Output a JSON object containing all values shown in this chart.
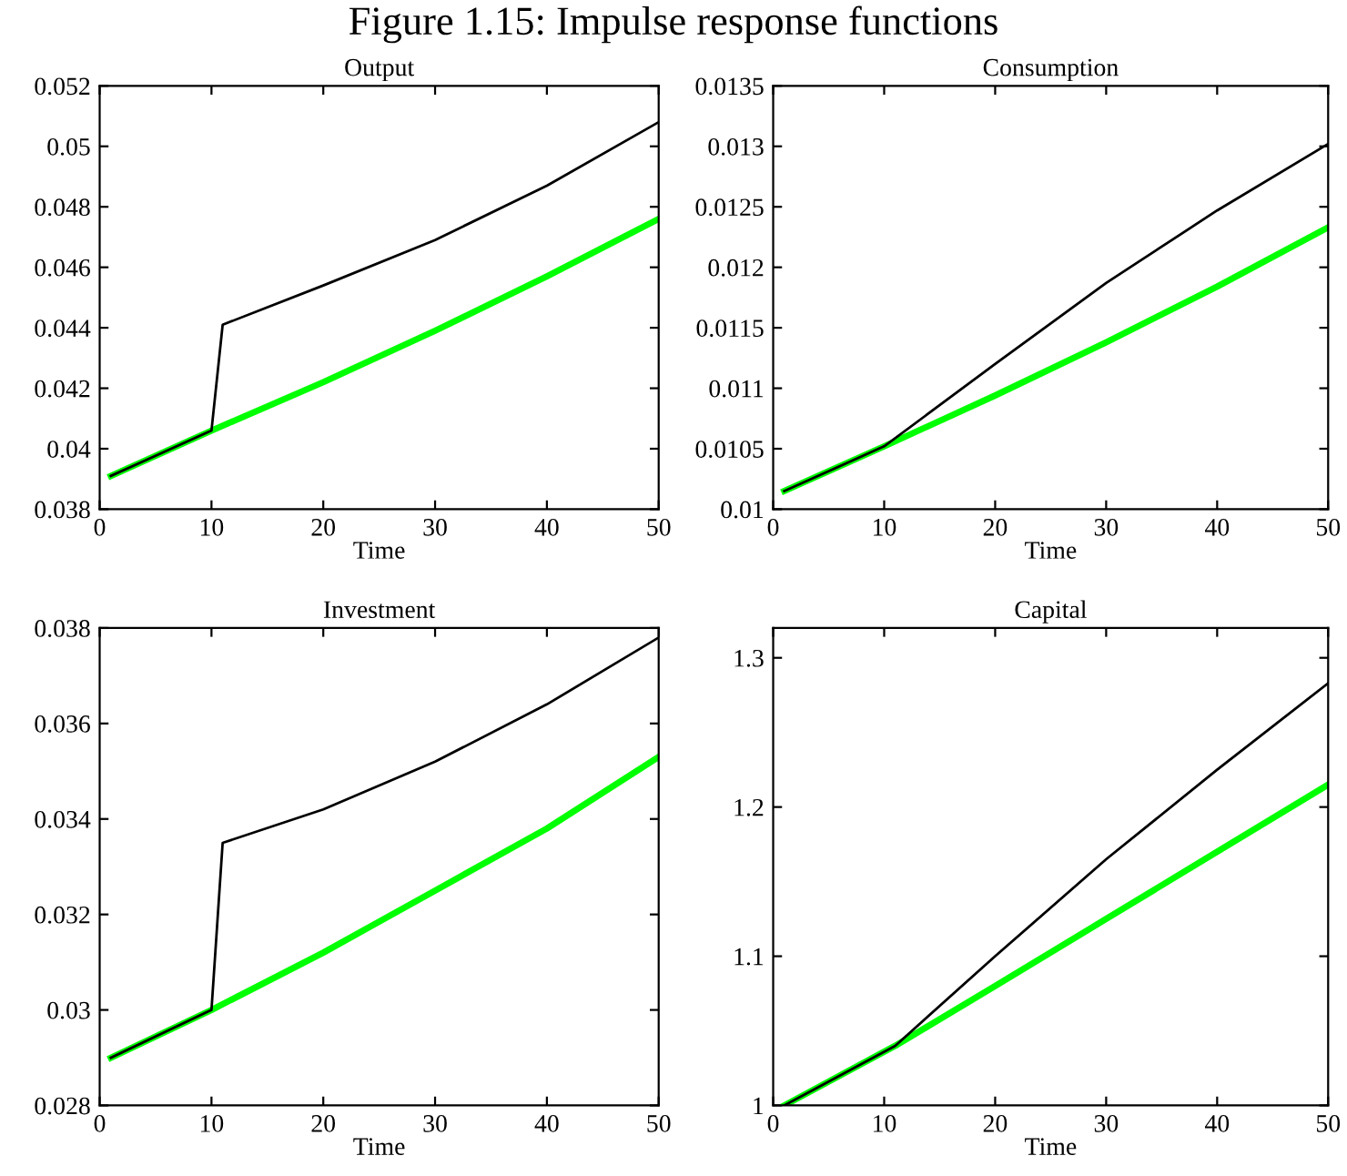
{
  "chart_data": [
    {
      "type": "line",
      "title": "Output",
      "xlabel": "Time",
      "xlim": [
        0,
        50
      ],
      "xticks": [
        0,
        10,
        20,
        30,
        40,
        50
      ],
      "ylim": [
        0.038,
        0.052
      ],
      "yticks": [
        0.038,
        0.04,
        0.042,
        0.044,
        0.046,
        0.048,
        0.05,
        0.052
      ],
      "grid": false,
      "legend": false,
      "annotations": [
        "Figure 1.15: Impulse response functions"
      ],
      "series": [
        {
          "color": "#00ff00",
          "x": [
            1,
            10,
            20,
            30,
            40,
            50
          ],
          "values": [
            0.0391,
            0.0406,
            0.0422,
            0.0439,
            0.0457,
            0.0476
          ]
        },
        {
          "color": "#000000",
          "x": [
            1,
            10,
            11,
            20,
            30,
            40,
            50
          ],
          "values": [
            0.0391,
            0.0406,
            0.0441,
            0.0454,
            0.0469,
            0.0487,
            0.0508
          ]
        }
      ]
    },
    {
      "type": "line",
      "title": "Consumption",
      "xlabel": "Time",
      "xlim": [
        0,
        50
      ],
      "xticks": [
        0,
        10,
        20,
        30,
        40,
        50
      ],
      "ylim": [
        0.01,
        0.0135
      ],
      "yticks": [
        0.01,
        0.0105,
        0.011,
        0.0115,
        0.012,
        0.0125,
        0.013,
        0.0135
      ],
      "grid": false,
      "legend": false,
      "series": [
        {
          "color": "#00ff00",
          "x": [
            1,
            10,
            20,
            30,
            40,
            50
          ],
          "values": [
            0.01015,
            0.01052,
            0.01094,
            0.01138,
            0.01184,
            0.01233
          ]
        },
        {
          "color": "#000000",
          "x": [
            1,
            10,
            20,
            30,
            40,
            50
          ],
          "values": [
            0.01015,
            0.01052,
            0.0112,
            0.01187,
            0.01247,
            0.01302
          ]
        }
      ]
    },
    {
      "type": "line",
      "title": "Investment",
      "xlabel": "Time",
      "xlim": [
        0,
        50
      ],
      "xticks": [
        0,
        10,
        20,
        30,
        40,
        50
      ],
      "ylim": [
        0.028,
        0.038
      ],
      "yticks": [
        0.028,
        0.03,
        0.032,
        0.034,
        0.036,
        0.038
      ],
      "grid": false,
      "legend": false,
      "series": [
        {
          "color": "#00ff00",
          "x": [
            1,
            10,
            20,
            30,
            40,
            50
          ],
          "values": [
            0.029,
            0.03,
            0.0312,
            0.0325,
            0.0338,
            0.0353
          ]
        },
        {
          "color": "#000000",
          "x": [
            1,
            10,
            11,
            20,
            30,
            40,
            50
          ],
          "values": [
            0.029,
            0.03,
            0.0335,
            0.0342,
            0.0352,
            0.0364,
            0.0378
          ]
        }
      ]
    },
    {
      "type": "line",
      "title": "Capital",
      "xlabel": "Time",
      "xlim": [
        0,
        50
      ],
      "xticks": [
        0,
        10,
        20,
        30,
        40,
        50
      ],
      "ylim": [
        1,
        1.32
      ],
      "yticks": [
        1,
        1.1,
        1.2,
        1.3
      ],
      "grid": false,
      "legend": false,
      "series": [
        {
          "color": "#00ff00",
          "x": [
            1,
            11,
            20,
            30,
            40,
            50
          ],
          "values": [
            1.0,
            1.04,
            1.08,
            1.125,
            1.17,
            1.215
          ]
        },
        {
          "color": "#000000",
          "x": [
            1,
            11,
            20,
            30,
            40,
            50
          ],
          "values": [
            1.0,
            1.04,
            1.1,
            1.165,
            1.225,
            1.283
          ]
        }
      ]
    }
  ]
}
